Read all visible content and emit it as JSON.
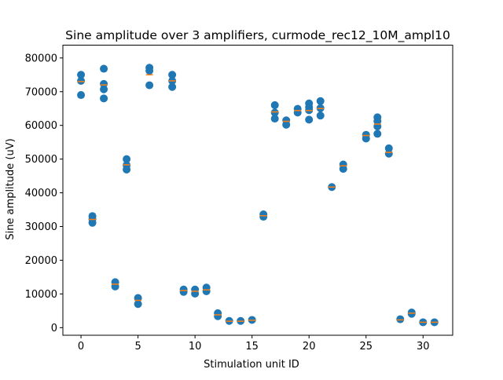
{
  "chart_data": {
    "type": "scatter",
    "title": "Sine amplitude over 3 amplifiers, curmode_rec12_10M_ampl10",
    "xlabel": "Stimulation unit ID",
    "ylabel": "Sine amplitude (uV)",
    "xlim": [
      -1.59,
      32.6
    ],
    "ylim": [
      -2254,
      83800
    ],
    "xticks": [
      0,
      5,
      10,
      15,
      20,
      25,
      30
    ],
    "yticks": [
      0,
      10000,
      20000,
      30000,
      40000,
      50000,
      60000,
      70000,
      80000
    ],
    "series": [
      {
        "marker": "circle",
        "color": "#1f77b4",
        "x": [
          0,
          0,
          0,
          1,
          1,
          1,
          2,
          2,
          2,
          2,
          3,
          3,
          4,
          4,
          4,
          5,
          5,
          6,
          6,
          6,
          8,
          8,
          8,
          9,
          9,
          10,
          10,
          11,
          11,
          12,
          12,
          13,
          14,
          15,
          16,
          16,
          17,
          17,
          17,
          18,
          18,
          19,
          19,
          20,
          20,
          20,
          20,
          21,
          21,
          21,
          22,
          23,
          23,
          25,
          25,
          26,
          26,
          26,
          26,
          27,
          27,
          28,
          29,
          29,
          30,
          31
        ],
        "values": [
          75000,
          73200,
          69000,
          33100,
          32200,
          31100,
          76800,
          72300,
          70700,
          68000,
          13500,
          12200,
          50000,
          48200,
          46900,
          8800,
          7000,
          77100,
          76200,
          71900,
          75000,
          73200,
          71400,
          11300,
          10600,
          11300,
          10100,
          11900,
          10800,
          4300,
          3400,
          2000,
          2000,
          2300,
          33600,
          32900,
          66000,
          63800,
          62000,
          61500,
          60200,
          64900,
          63800,
          66500,
          65400,
          64500,
          61700,
          67200,
          65100,
          62900,
          41700,
          48400,
          47100,
          57200,
          56100,
          62400,
          61300,
          59700,
          57500,
          53200,
          51600,
          2500,
          4500,
          4100,
          1600,
          1600
        ]
      },
      {
        "marker": "dash",
        "color": "#ff7f0e",
        "x": [
          0,
          1,
          2,
          3,
          4,
          5,
          6,
          8,
          9,
          10,
          11,
          12,
          13,
          14,
          15,
          16,
          17,
          18,
          19,
          20,
          21,
          22,
          23,
          25,
          26,
          27,
          28,
          29,
          30,
          31
        ],
        "values": [
          73000,
          32100,
          72000,
          12900,
          48300,
          8100,
          75000,
          73200,
          11000,
          10800,
          11200,
          3800,
          1900,
          1900,
          2200,
          33200,
          64000,
          61200,
          64400,
          64400,
          65000,
          41700,
          48000,
          57000,
          60400,
          52000,
          2300,
          4300,
          1600,
          1600
        ]
      }
    ]
  }
}
